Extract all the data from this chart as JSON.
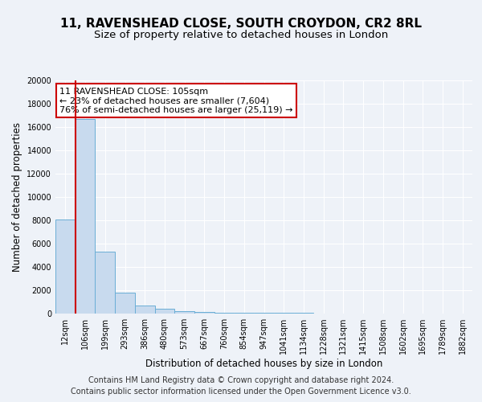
{
  "title": "11, RAVENSHEAD CLOSE, SOUTH CROYDON, CR2 8RL",
  "subtitle": "Size of property relative to detached houses in London",
  "xlabel": "Distribution of detached houses by size in London",
  "ylabel": "Number of detached properties",
  "categories": [
    "12sqm",
    "106sqm",
    "199sqm",
    "293sqm",
    "386sqm",
    "480sqm",
    "573sqm",
    "667sqm",
    "760sqm",
    "854sqm",
    "947sqm",
    "1041sqm",
    "1134sqm",
    "1228sqm",
    "1321sqm",
    "1415sqm",
    "1508sqm",
    "1602sqm",
    "1695sqm",
    "1789sqm",
    "1882sqm"
  ],
  "values": [
    8100,
    16700,
    5300,
    1800,
    700,
    380,
    230,
    150,
    100,
    80,
    60,
    50,
    40,
    30,
    25,
    20,
    18,
    15,
    12,
    10,
    8
  ],
  "bar_color": "#c8daee",
  "bar_edge_color": "#6aaed6",
  "red_line_color": "#cc0000",
  "annotation_text_line1": "11 RAVENSHEAD CLOSE: 105sqm",
  "annotation_text_line2": "← 23% of detached houses are smaller (7,604)",
  "annotation_text_line3": "76% of semi-detached houses are larger (25,119) →",
  "annotation_box_facecolor": "#ffffff",
  "annotation_box_edgecolor": "#cc0000",
  "ylim": [
    0,
    20000
  ],
  "yticks": [
    0,
    2000,
    4000,
    6000,
    8000,
    10000,
    12000,
    14000,
    16000,
    18000,
    20000
  ],
  "footer_line1": "Contains HM Land Registry data © Crown copyright and database right 2024.",
  "footer_line2": "Contains public sector information licensed under the Open Government Licence v3.0.",
  "background_color": "#eef2f8",
  "plot_bg_color": "#eef2f8",
  "grid_color": "#ffffff",
  "title_fontsize": 11,
  "subtitle_fontsize": 9.5,
  "ylabel_fontsize": 8.5,
  "xlabel_fontsize": 8.5,
  "tick_fontsize": 7,
  "annotation_fontsize": 8,
  "footer_fontsize": 7
}
